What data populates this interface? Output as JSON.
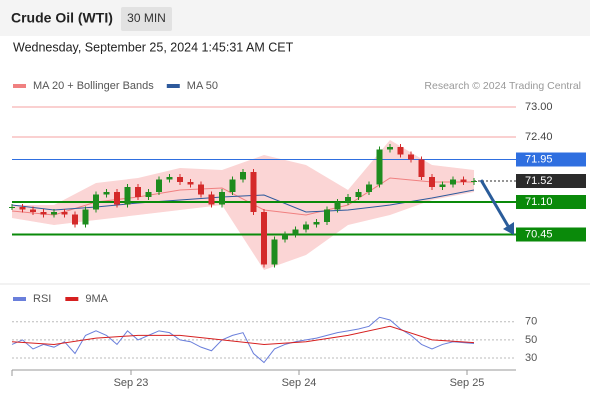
{
  "header": {
    "title": "Crude Oil (WTI)",
    "interval": "30 MIN",
    "datetime": "Wednesday, September 25, 2024 1:45:31 AM CET",
    "credit": "Research © 2024 Trading Central"
  },
  "chart_data": [
    {
      "type": "candlestick",
      "xlim": [
        0,
        72
      ],
      "ylim": [
        69.44,
        73.34
      ],
      "candles": {
        "up_color": "#1e8c1e",
        "down_color": "#d42a2a",
        "x": [
          0,
          1.5,
          3,
          4.5,
          6,
          7.5,
          9,
          10.5,
          12,
          13.5,
          15,
          16.5,
          18,
          19.5,
          21,
          22.5,
          24,
          25.5,
          27,
          28.5,
          30,
          31.5,
          33,
          34.5,
          36,
          37.5,
          39,
          40.5,
          42,
          43.5,
          45,
          46.5,
          48,
          49.5,
          51,
          52.5,
          54,
          55.5,
          57,
          58.5,
          60,
          61.5,
          63,
          64.5,
          66
        ],
        "values": [
          71.0,
          70.95,
          70.9,
          70.85,
          70.9,
          70.85,
          70.65,
          70.95,
          71.25,
          71.3,
          71.05,
          71.4,
          71.2,
          71.3,
          71.55,
          71.6,
          71.5,
          71.45,
          71.25,
          71.05,
          71.3,
          71.55,
          71.7,
          70.9,
          69.85,
          70.35,
          70.45,
          70.55,
          70.65,
          70.7,
          70.95,
          71.1,
          71.2,
          71.3,
          71.45,
          72.15,
          72.2,
          72.05,
          71.95,
          71.6,
          71.4,
          71.45,
          71.55,
          71.5,
          71.52
        ]
      },
      "series": [
        {
          "name": "MA 20 + Bollinger Bands",
          "color": "#f08080",
          "band_color": "#fbd5d5",
          "x": [
            0,
            6,
            12,
            18,
            24,
            30,
            36,
            42,
            48,
            54,
            60,
            66
          ],
          "values": [
            70.92,
            70.84,
            71.1,
            71.2,
            71.34,
            71.38,
            70.94,
            70.84,
            71.04,
            71.58,
            71.5,
            71.5
          ],
          "upper": [
            71.04,
            71.04,
            71.48,
            71.58,
            71.78,
            71.74,
            72.04,
            71.84,
            71.34,
            72.34,
            71.84,
            71.74
          ],
          "lower": [
            70.78,
            70.64,
            70.74,
            70.84,
            70.94,
            71.04,
            69.74,
            70.04,
            70.64,
            70.84,
            71.14,
            71.3
          ]
        },
        {
          "name": "MA 50",
          "color": "#2e5a9c",
          "x": [
            0,
            6,
            12,
            18,
            24,
            30,
            36,
            42,
            48,
            54,
            60,
            66
          ],
          "values": [
            71.04,
            70.94,
            71.0,
            71.08,
            71.14,
            71.2,
            71.24,
            70.9,
            70.94,
            71.04,
            71.18,
            71.34
          ]
        }
      ],
      "levels": [
        {
          "value": 73,
          "label": "73.00",
          "color": "#f4a0a0",
          "boxed": false
        },
        {
          "value": 72.4,
          "label": "72.40",
          "color": "#f4a0a0",
          "boxed": false
        },
        {
          "value": 71.95,
          "label": "71.95",
          "color": "#2f6fe0",
          "boxed": true
        },
        {
          "value": 71.52,
          "label": "71.52",
          "color": "#2b2b2b",
          "boxed": true
        },
        {
          "value": 71.1,
          "label": "71.10",
          "color": "#0a8a0a",
          "boxed": true
        },
        {
          "value": 70.45,
          "label": "70.45",
          "color": "#0a8a0a",
          "boxed": true
        }
      ]
    },
    {
      "type": "line",
      "xlim": [
        0,
        72
      ],
      "ylim": [
        19,
        83
      ],
      "yticks": [
        70,
        50,
        30
      ],
      "xticks": [
        {
          "value": 17,
          "label": "Sep 23"
        },
        {
          "value": 41,
          "label": "Sep 24"
        },
        {
          "value": 65,
          "label": "Sep 25"
        }
      ],
      "series": [
        {
          "name": "RSI",
          "color": "#6a7fdb",
          "x": [
            0,
            1.5,
            3,
            4.5,
            6,
            7.5,
            9,
            10.5,
            12,
            13.5,
            15,
            16.5,
            18,
            19.5,
            21,
            22.5,
            24,
            25.5,
            27,
            28.5,
            30,
            31.5,
            33,
            34.5,
            36,
            37.5,
            39,
            40.5,
            42,
            43.5,
            45,
            46.5,
            48,
            49.5,
            51,
            52.5,
            54,
            55.5,
            57,
            58.5,
            60,
            61.5,
            63,
            64.5,
            66
          ],
          "values": [
            45,
            50,
            40,
            45,
            42,
            48,
            35,
            55,
            60,
            55,
            45,
            60,
            50,
            55,
            60,
            58,
            50,
            48,
            42,
            38,
            50,
            55,
            58,
            35,
            25,
            40,
            45,
            48,
            50,
            52,
            55,
            58,
            60,
            62,
            65,
            75,
            72,
            62,
            55,
            45,
            40,
            45,
            48,
            47,
            46
          ]
        },
        {
          "name": "9MA",
          "color": "#d62020",
          "x": [
            0,
            6,
            12,
            18,
            24,
            30,
            36,
            42,
            48,
            54,
            60,
            66
          ],
          "values": [
            48,
            45,
            52,
            55,
            55,
            50,
            45,
            48,
            55,
            65,
            50,
            47
          ]
        }
      ]
    }
  ]
}
